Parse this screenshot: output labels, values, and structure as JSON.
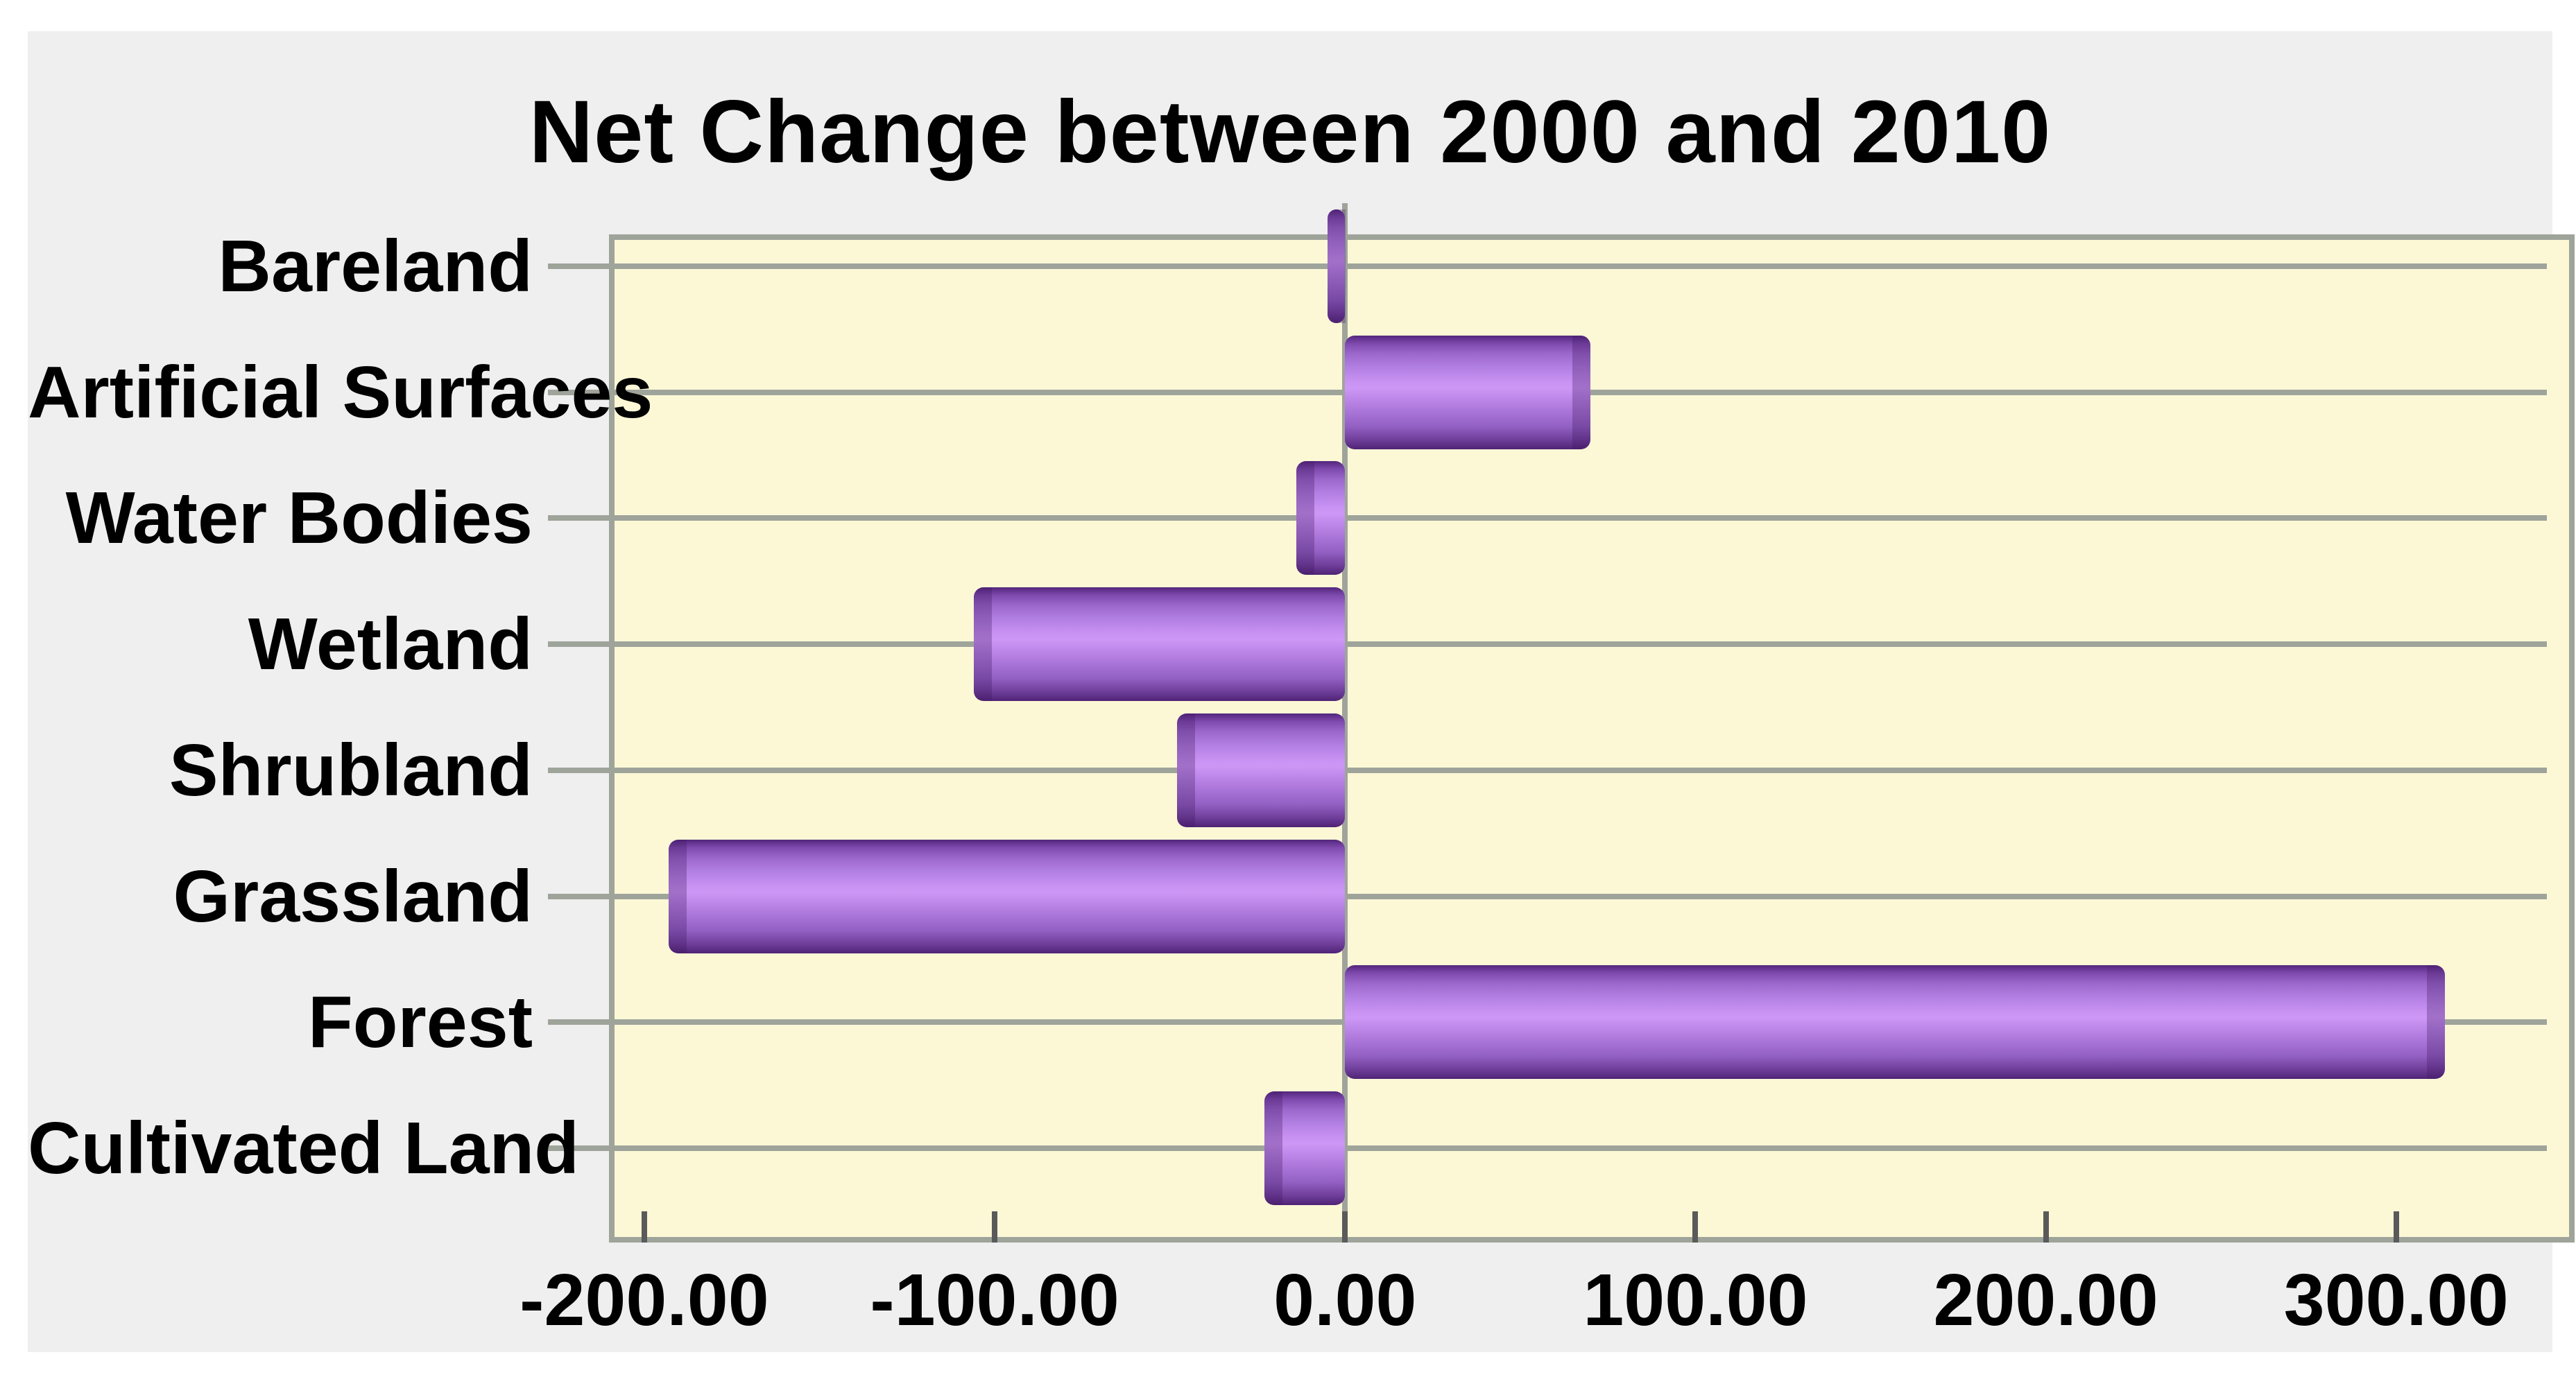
{
  "chart_data": {
    "type": "bar",
    "orientation": "horizontal",
    "title": "Net Change between 2000 and 2010",
    "categories": [
      "Bareland",
      "Artificial Surfaces",
      "Water Bodies",
      "Wetland",
      "Shrubland",
      "Grassland",
      "Forest",
      "Cultivated Land"
    ],
    "values": [
      -5,
      70,
      -14,
      -106,
      -48,
      -193,
      314,
      -23
    ],
    "x_ticks": [
      -200,
      -100,
      0,
      100,
      200,
      300
    ],
    "x_tick_labels": [
      "-200.00",
      "-100.00",
      "0.00",
      "100.00",
      "200.00",
      "300.00"
    ],
    "xlim": [
      -218,
      343
    ],
    "xlabel": "",
    "ylabel": "",
    "grid": true,
    "legend_position": "none",
    "bar_color": "#a873d6",
    "bar_edge_color": "#53267c",
    "plot_background": "#fcf8d6",
    "panel_background": "#efefef",
    "grid_color": "#9fa49b",
    "text_color": "#000000"
  }
}
